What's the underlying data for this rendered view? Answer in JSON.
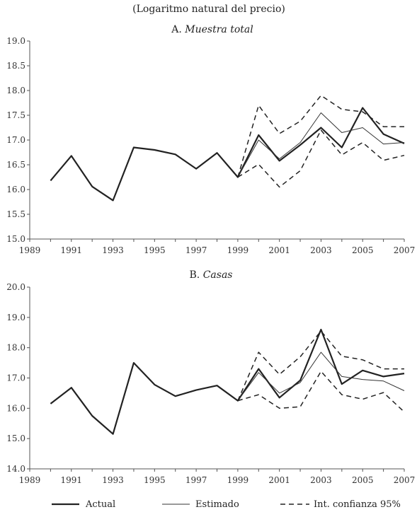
{
  "figure": {
    "subtitle": "(Logaritmo natural del precio)"
  },
  "legend": {
    "actual": "Actual",
    "estimado": "Estimado",
    "ci": "Int. confianza 95%"
  },
  "chart_data": [
    {
      "type": "line",
      "title_prefix": "A.",
      "title_italic": "Muestra total",
      "ylim": [
        15.0,
        19.0
      ],
      "yticks": [
        "15.0",
        "15.5",
        "16.0",
        "16.5",
        "17.0",
        "17.5",
        "18.0",
        "18.5",
        "19.0"
      ],
      "xlim": [
        1989,
        2007
      ],
      "xticks": [
        "1989",
        "1991",
        "1993",
        "1995",
        "1997",
        "1999",
        "2001",
        "2003",
        "2005",
        "2007"
      ],
      "series": [
        {
          "name": "Actual",
          "x": [
            1990,
            1991,
            1992,
            1993,
            1994,
            1995,
            1996,
            1997,
            1998,
            1999,
            2000,
            2001,
            2002,
            2003,
            2004,
            2005,
            2006,
            2007
          ],
          "y": [
            16.18,
            16.68,
            16.06,
            15.78,
            16.85,
            16.8,
            16.71,
            16.42,
            16.74,
            16.25,
            17.1,
            16.58,
            16.9,
            17.25,
            16.85,
            17.65,
            17.12,
            16.93
          ]
        },
        {
          "name": "Estimado",
          "x": [
            1999,
            2000,
            2001,
            2002,
            2003,
            2004,
            2005,
            2006,
            2007
          ],
          "y": [
            16.25,
            17.0,
            16.62,
            16.95,
            17.55,
            17.15,
            17.25,
            16.92,
            16.95
          ]
        },
        {
          "name": "Int. confianza 95% superior",
          "x": [
            1999,
            2000,
            2001,
            2002,
            2003,
            2004,
            2005,
            2006,
            2007
          ],
          "y": [
            16.25,
            17.7,
            17.13,
            17.38,
            17.9,
            17.62,
            17.57,
            17.27,
            17.27
          ]
        },
        {
          "name": "Int. confianza 95% inferior",
          "x": [
            1999,
            2000,
            2001,
            2002,
            2003,
            2004,
            2005,
            2006,
            2007
          ],
          "y": [
            16.25,
            16.51,
            16.05,
            16.38,
            17.2,
            16.7,
            16.95,
            16.59,
            16.69
          ]
        }
      ]
    },
    {
      "type": "line",
      "title_prefix": "B.",
      "title_italic": "Casas",
      "ylim": [
        14.0,
        20.0
      ],
      "yticks": [
        "14.0",
        "15.0",
        "16.0",
        "17.0",
        "18.0",
        "19.0",
        "20.0"
      ],
      "xlim": [
        1989,
        2007
      ],
      "xticks": [
        "1989",
        "1991",
        "1993",
        "1995",
        "1997",
        "1999",
        "2001",
        "2003",
        "2005",
        "2007"
      ],
      "series": [
        {
          "name": "Actual",
          "x": [
            1990,
            1991,
            1992,
            1993,
            1994,
            1995,
            1996,
            1997,
            1998,
            1999,
            2000,
            2001,
            2002,
            2003,
            2004,
            2005,
            2006,
            2007
          ],
          "y": [
            16.15,
            16.68,
            15.75,
            15.15,
            17.5,
            16.78,
            16.4,
            16.6,
            16.75,
            16.25,
            17.3,
            16.35,
            16.92,
            18.6,
            16.8,
            17.25,
            17.05,
            17.15
          ]
        },
        {
          "name": "Estimado",
          "x": [
            1999,
            2000,
            2001,
            2002,
            2003,
            2004,
            2005,
            2006,
            2007
          ],
          "y": [
            16.25,
            17.18,
            16.5,
            16.85,
            17.85,
            17.05,
            16.95,
            16.9,
            16.58
          ]
        },
        {
          "name": "Int. confianza 95% superior",
          "x": [
            1999,
            2000,
            2001,
            2002,
            2003,
            2004,
            2005,
            2006,
            2007
          ],
          "y": [
            16.25,
            17.85,
            17.12,
            17.7,
            18.55,
            17.72,
            17.6,
            17.3,
            17.3
          ]
        },
        {
          "name": "Int. confianza 95% inferior",
          "x": [
            1999,
            2000,
            2001,
            2002,
            2003,
            2004,
            2005,
            2006,
            2007
          ],
          "y": [
            16.25,
            16.45,
            16.0,
            16.05,
            17.22,
            16.45,
            16.3,
            16.52,
            15.88
          ]
        }
      ]
    }
  ]
}
